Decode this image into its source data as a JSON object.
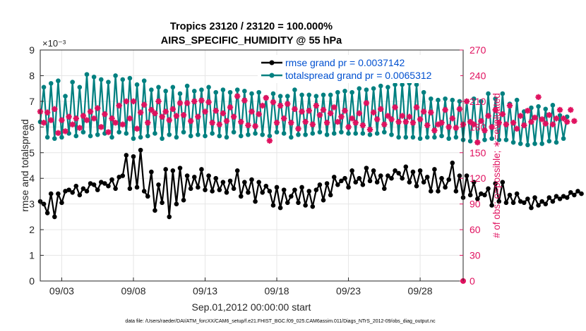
{
  "chart_data": {
    "type": "line",
    "title": "Tropics 23120 / 23120 = 100.000%",
    "subtitle": "AIRS_SPECIFIC_HUMIDITY @ 55 hPa",
    "xlabel": "Sep.01,2012 00:00:00 start",
    "ylabel_left": "rmse and totalspread",
    "ylabel_right": "# of obs: o=possible; ∗=evaluated",
    "y_exponent_label": "×10⁻³",
    "footnote": "data file: /Users/raeder/DAI/ATM_forcXX/CAM6_setup/f.e21.FHIST_BGC.f09_025.CAM6assim.011/Diags_NTrS_2012-09/obs_diag_output.nc",
    "xlim": [
      1.5,
      31.0
    ],
    "ylim_left": [
      0,
      9
    ],
    "ylim_right": [
      0,
      270
    ],
    "y_left_ticks": [
      "0",
      "1",
      "2",
      "3",
      "4",
      "5",
      "6",
      "7",
      "8",
      "9"
    ],
    "y_right_ticks": [
      "0",
      "30",
      "60",
      "90",
      "120",
      "150",
      "180",
      "210",
      "240",
      "270"
    ],
    "x_ticks": [
      {
        "day": 3,
        "label": "09/03"
      },
      {
        "day": 8,
        "label": "09/08"
      },
      {
        "day": 13,
        "label": "09/13"
      },
      {
        "day": 18,
        "label": "09/18"
      },
      {
        "day": 23,
        "label": "09/23"
      },
      {
        "day": 28,
        "label": "09/28"
      }
    ],
    "legend": [
      {
        "name": "rmse grand pr = 0.0037142",
        "color": "#000000"
      },
      {
        "name": "totalspread grand pr = 0.0065312",
        "color": "#008080"
      }
    ],
    "legend_position": "top-right",
    "colors": {
      "rmse": "#000000",
      "spread": "#008080",
      "obs": "#e0115f",
      "grid": "#e6e6e6"
    },
    "series": [
      {
        "name": "rmse",
        "axis": "left",
        "start_day": 1.5,
        "step_days": 0.25,
        "values": [
          3.1,
          3.0,
          2.65,
          3.4,
          2.5,
          3.4,
          3.05,
          3.5,
          3.55,
          3.45,
          3.7,
          3.35,
          3.6,
          3.5,
          3.8,
          3.75,
          3.55,
          3.85,
          3.8,
          3.7,
          3.95,
          3.6,
          4.05,
          4.1,
          4.9,
          3.6,
          4.85,
          3.65,
          5.1,
          3.5,
          3.3,
          4.25,
          2.75,
          3.75,
          3.05,
          4.35,
          2.5,
          4.3,
          3.0,
          4.4,
          3.15,
          4.1,
          3.6,
          4.05,
          3.65,
          4.35,
          3.55,
          4.1,
          3.5,
          4.0,
          3.55,
          3.85,
          3.45,
          3.9,
          3.6,
          4.3,
          3.3,
          3.85,
          3.45,
          3.95,
          3.1,
          3.85,
          3.45,
          3.7,
          3.5,
          2.95,
          3.65,
          2.85,
          3.55,
          3.05,
          3.3,
          3.55,
          3.05,
          3.65,
          2.95,
          3.5,
          2.9,
          3.55,
          3.75,
          3.15,
          3.8,
          3.35,
          4.05,
          3.75,
          3.9,
          4.0,
          3.65,
          4.3,
          3.85,
          4.0,
          3.75,
          4.4,
          3.9,
          4.3,
          3.85,
          4.1,
          3.6,
          4.1,
          4.0,
          4.3,
          4.2,
          4.0,
          4.45,
          3.85,
          4.25,
          3.7,
          4.3,
          3.85,
          4.05,
          3.5,
          4.35,
          3.5,
          4.0,
          3.65,
          3.95,
          4.6,
          3.5,
          4.1,
          3.25,
          4.1,
          3.35,
          3.85,
          3.2,
          3.4,
          3.35,
          3.6,
          2.95,
          3.8,
          3.1,
          3.85,
          3.05,
          3.35,
          3.05,
          3.4,
          3.1,
          3.05,
          3.2,
          2.85,
          3.25,
          2.95,
          3.1,
          3.0,
          3.25,
          3.1,
          3.3,
          3.2,
          3.3,
          3.25,
          3.45,
          3.35,
          3.5,
          3.4
        ]
      },
      {
        "name": "totalspread",
        "axis": "left",
        "start_day": 1.5,
        "step_days": 0.25,
        "values": [
          6.2,
          7.55,
          5.6,
          7.7,
          5.55,
          7.8,
          5.6,
          7.2,
          5.75,
          7.75,
          5.65,
          7.55,
          5.8,
          8.05,
          5.65,
          7.95,
          5.7,
          7.85,
          5.75,
          7.75,
          5.6,
          8.0,
          5.8,
          7.85,
          5.75,
          7.9,
          5.55,
          7.65,
          5.6,
          7.8,
          5.65,
          7.45,
          5.75,
          7.55,
          5.55,
          7.4,
          5.7,
          7.55,
          5.6,
          7.3,
          5.8,
          7.6,
          5.65,
          7.4,
          5.7,
          7.45,
          5.65,
          7.55,
          5.75,
          7.35,
          5.65,
          7.45,
          5.6,
          7.35,
          5.8,
          7.45,
          5.65,
          7.4,
          5.7,
          7.3,
          5.75,
          7.35,
          5.7,
          7.15,
          5.65,
          7.3,
          5.8,
          7.2,
          5.75,
          7.2,
          5.6,
          7.45,
          5.7,
          7.25,
          5.7,
          7.25,
          5.75,
          7.2,
          5.8,
          7.25,
          5.7,
          7.25,
          5.75,
          7.35,
          5.8,
          7.4,
          5.75,
          7.35,
          5.75,
          7.5,
          5.75,
          7.45,
          5.7,
          7.5,
          5.75,
          7.6,
          5.8,
          7.55,
          5.7,
          7.65,
          5.6,
          7.65,
          5.6,
          7.7,
          5.6,
          7.65,
          5.55,
          7.35,
          5.6,
          7.1,
          5.6,
          7.05,
          5.65,
          7.1,
          5.55,
          7.05,
          5.6,
          7.0,
          5.5,
          7.0,
          5.45,
          7.1,
          5.4,
          7.0,
          5.5,
          7.3,
          5.55,
          7.1,
          5.5,
          7.3,
          5.5,
          6.9,
          5.4,
          7.05,
          5.35,
          6.6,
          5.3,
          6.75,
          5.35,
          6.8,
          5.35,
          6.7,
          5.45,
          6.85,
          5.4,
          6.45,
          5.55,
          6.4
        ]
      },
      {
        "name": "# of obs evaluated",
        "axis": "right",
        "marker": "asterisk",
        "start_day": 1.5,
        "step_days": 0.25,
        "values": [
          198,
          185,
          197,
          188,
          201,
          173,
          188,
          175,
          192,
          183,
          190,
          179,
          193,
          188,
          198,
          190,
          202,
          180,
          195,
          174,
          190,
          185,
          205,
          183,
          210,
          190,
          210,
          178,
          197,
          206,
          185,
          200,
          196,
          210,
          192,
          198,
          188,
          201,
          193,
          208,
          194,
          208,
          187,
          210,
          192,
          211,
          198,
          209,
          185,
          199,
          183,
          196,
          187,
          203,
          192,
          216,
          186,
          211,
          182,
          198,
          181,
          195,
          205,
          214,
          164,
          209,
          185,
          205,
          190,
          207,
          185,
          201,
          178,
          198,
          186,
          199,
          183,
          205,
          194,
          200,
          185,
          196,
          203,
          186,
          192,
          199,
          180,
          190,
          185,
          196,
          182,
          208,
          177,
          197,
          189,
          201,
          183,
          193,
          189,
          203,
          186,
          193,
          186,
          192,
          185,
          203,
          189,
          198,
          182,
          197,
          176,
          183,
          185,
          200,
          180,
          190,
          179,
          201,
          183,
          210,
          186,
          183,
          162,
          187,
          176,
          193,
          180,
          200,
          185,
          195,
          183,
          205,
          185,
          178,
          193,
          182,
          199,
          186,
          191,
          215,
          189,
          184,
          194,
          183,
          190,
          200,
          190,
          186,
          200,
          187
        ]
      },
      {
        "name": "# of obs possible",
        "axis": "right",
        "marker": "circle",
        "x_days": [
          31
        ],
        "values": [
          0
        ]
      }
    ]
  }
}
